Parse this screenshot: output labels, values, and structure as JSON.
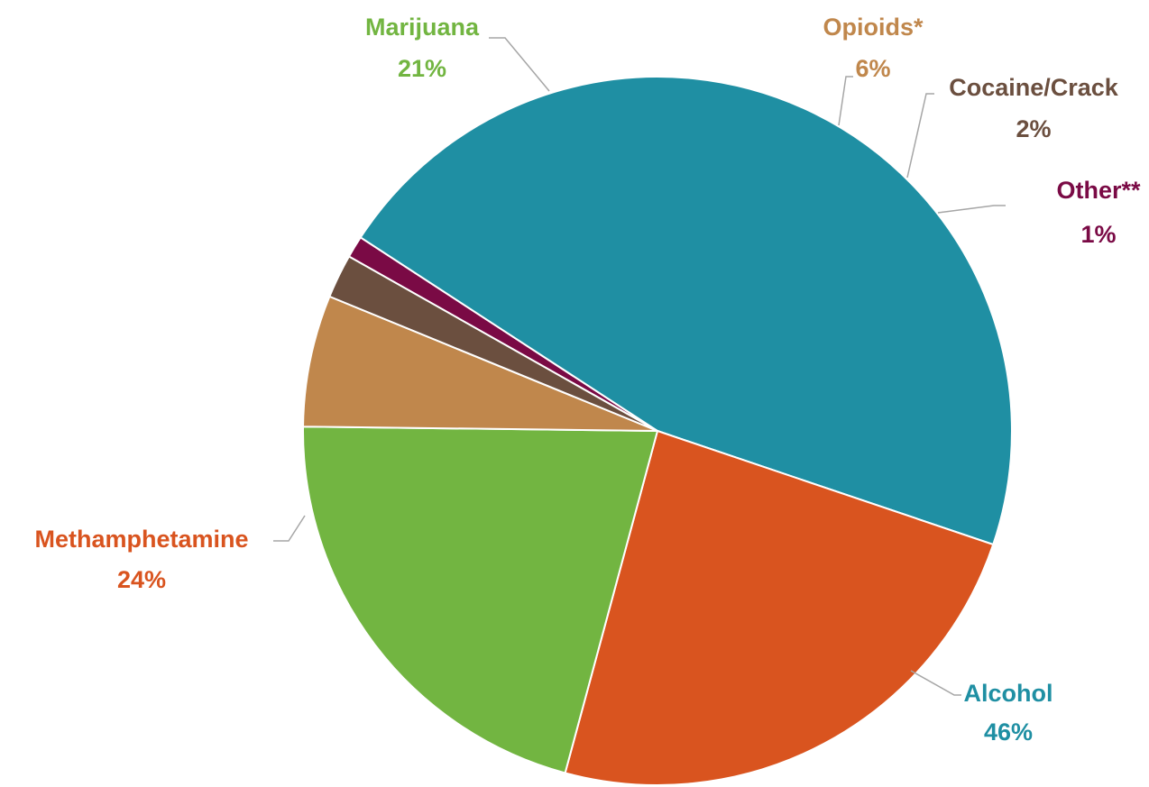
{
  "chart_data": {
    "type": "pie",
    "title": "",
    "legend": "none",
    "slices": [
      {
        "label": "Other**",
        "value": 1,
        "display": "1%",
        "color": "#7A0A45"
      },
      {
        "label": "Alcohol",
        "value": 46,
        "display": "46%",
        "color": "#1F8FA3"
      },
      {
        "label": "Methamphetamine",
        "value": 24,
        "display": "24%",
        "color": "#D9541F"
      },
      {
        "label": "Marijuana",
        "value": 21,
        "display": "21%",
        "color": "#72B541"
      },
      {
        "label": "Opioids*",
        "value": 6,
        "display": "6%",
        "color": "#C0874C"
      },
      {
        "label": "Cocaine/Crack",
        "value": 2,
        "display": "2%",
        "color": "#6B4F3F"
      }
    ]
  }
}
